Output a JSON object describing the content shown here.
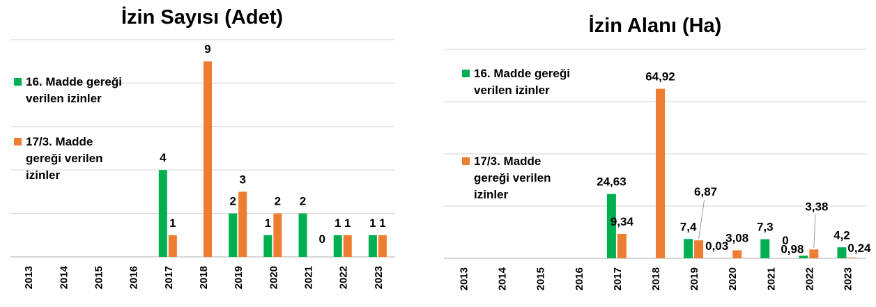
{
  "charts": [
    {
      "chart_data": {
        "type": "bar",
        "title": "İzin Sayısı (Adet)",
        "categories": [
          "2013",
          "2014",
          "2015",
          "2016",
          "2017",
          "2018",
          "2019",
          "2020",
          "2021",
          "2022",
          "2023"
        ],
        "series": [
          {
            "name": "16. Madde gereği verilen izinler",
            "color": "#00b050",
            "values": [
              null,
              null,
              null,
              null,
              4,
              null,
              2,
              1,
              2,
              1,
              1
            ]
          },
          {
            "name": "17/3. Madde gereği verilen izinler",
            "color": "#ed7d31",
            "values": [
              null,
              null,
              null,
              null,
              1,
              9,
              3,
              2,
              0,
              1,
              1
            ]
          }
        ],
        "ylim": [
          0,
          10
        ],
        "yticks": [
          0,
          2,
          4,
          6,
          8,
          10
        ],
        "grid": true,
        "legend": "left"
      }
    },
    {
      "chart_data": {
        "type": "bar",
        "title": "İzin Alanı (Ha)",
        "categories": [
          "2013",
          "2014",
          "2015",
          "2016",
          "2017",
          "2018",
          "2019",
          "2020",
          "2021",
          "2022",
          "2023"
        ],
        "series": [
          {
            "name": "16. Madde gereği verilen izinler",
            "color": "#00b050",
            "values": [
              null,
              null,
              null,
              null,
              24.63,
              null,
              7.4,
              0.03,
              7.3,
              0.98,
              4.2
            ],
            "value_labels": [
              null,
              null,
              null,
              null,
              "24,63",
              null,
              "7,4",
              "0,03",
              "7,3",
              "0,98",
              "4,2"
            ]
          },
          {
            "name": "17/3. Madde gereği verilen izinler",
            "color": "#ed7d31",
            "values": [
              null,
              null,
              null,
              null,
              9.34,
              64.92,
              6.87,
              3.08,
              0,
              3.38,
              0.24
            ],
            "value_labels": [
              null,
              null,
              null,
              null,
              "9,34",
              "64,92",
              "6,87",
              "3,08",
              "0",
              "3,38",
              "0,24"
            ]
          }
        ],
        "ylim": [
          0,
          80
        ],
        "yticks": [
          0,
          20,
          40,
          60,
          80
        ],
        "grid": true,
        "legend": "left"
      }
    }
  ]
}
